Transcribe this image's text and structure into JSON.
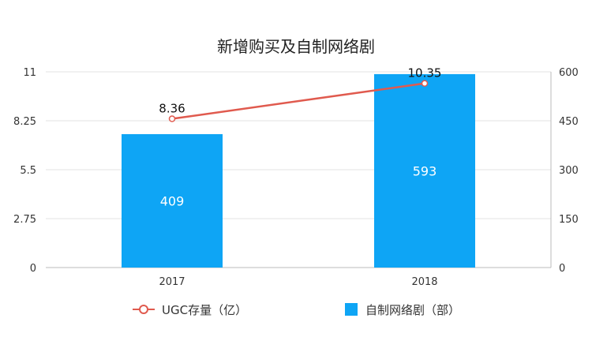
{
  "chart_data": {
    "type": "bar+line",
    "title": "新增购买及自制网络剧",
    "categories": [
      "2017",
      "2018"
    ],
    "series": [
      {
        "name": "自制网络剧（部）",
        "kind": "bar",
        "axis": "right",
        "color": "#0ea5f5",
        "values": [
          409,
          593
        ]
      },
      {
        "name": "UGC存量（亿）",
        "kind": "line",
        "axis": "left",
        "color": "#e05a4e",
        "values": [
          8.36,
          10.35
        ]
      }
    ],
    "y_left": {
      "ticks": [
        "0",
        "2.75",
        "5.5",
        "8.25",
        "11"
      ],
      "range": [
        0,
        11
      ]
    },
    "y_right": {
      "ticks": [
        "0",
        "150",
        "300",
        "450",
        "600"
      ],
      "range": [
        0,
        600
      ]
    },
    "grid": true,
    "legend_position": "bottom"
  }
}
